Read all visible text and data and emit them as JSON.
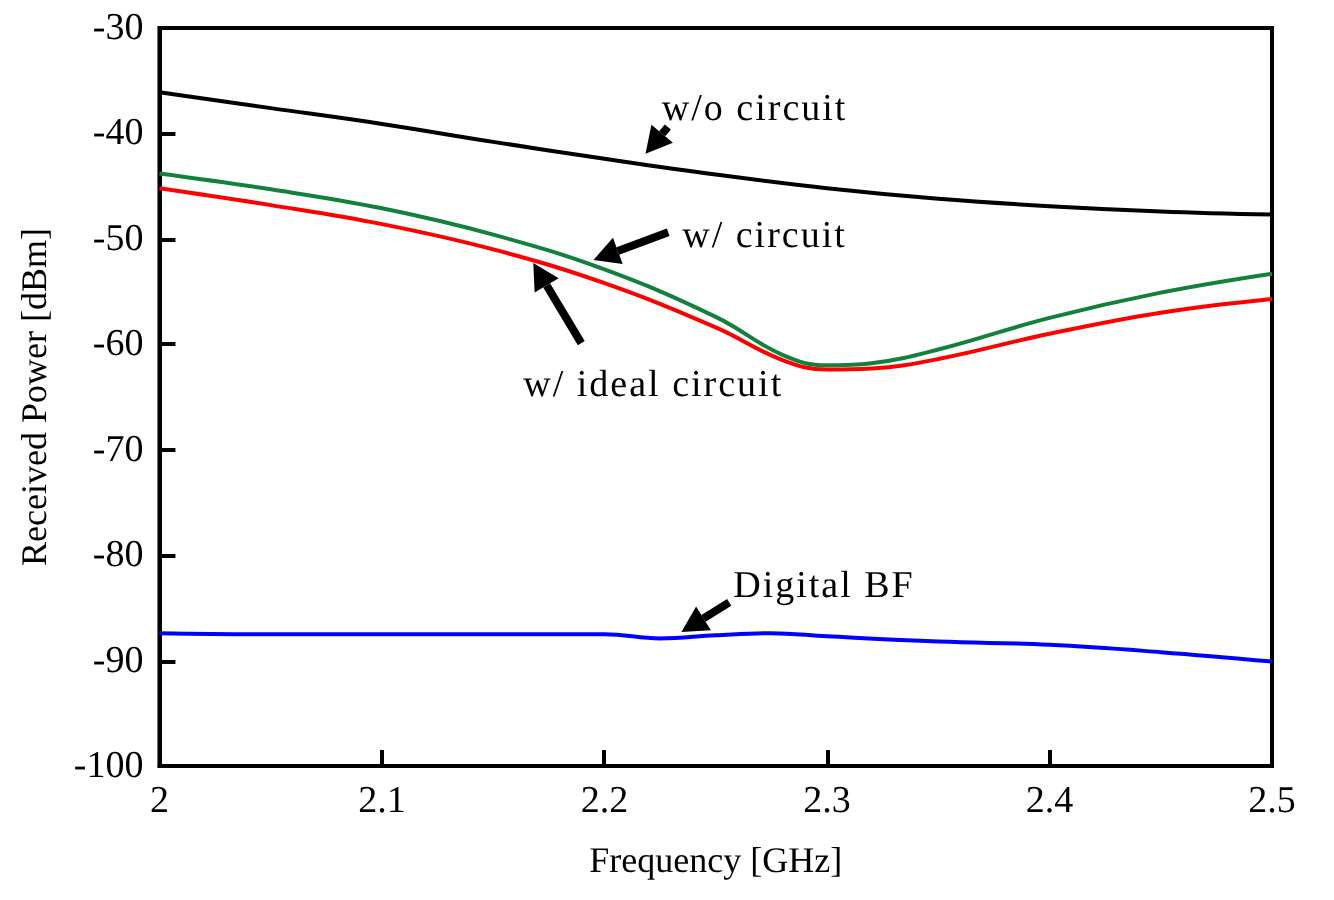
{
  "chart_data": {
    "type": "line",
    "xlabel": "Frequency [GHz]",
    "ylabel": "Received Power [dBm]",
    "xlim": [
      2,
      2.5
    ],
    "ylim": [
      -100,
      -30
    ],
    "xticks": [
      2,
      2.1,
      2.2,
      2.3,
      2.4,
      2.5
    ],
    "yticks": [
      -100,
      -90,
      -80,
      -70,
      -60,
      -50,
      -40,
      -30
    ],
    "grid": false,
    "marker": "none",
    "line_style": "solid",
    "series": [
      {
        "color": "#000000",
        "x": [
          2,
          2.05,
          2.1,
          2.15,
          2.2,
          2.25,
          2.3,
          2.35,
          2.4,
          2.45,
          2.5
        ],
        "values": [
          -36.1,
          -37.6,
          -39.1,
          -40.8,
          -42.4,
          -43.9,
          -45.2,
          -46.2,
          -46.9,
          -47.4,
          -47.7
        ]
      },
      {
        "color": "#13803c",
        "x": [
          2,
          2.05,
          2.1,
          2.15,
          2.2,
          2.25,
          2.28,
          2.3,
          2.32,
          2.35,
          2.4,
          2.45,
          2.5
        ],
        "values": [
          -43.8,
          -45.3,
          -47.1,
          -49.6,
          -52.9,
          -57.4,
          -61,
          -62,
          -61.8,
          -60.5,
          -57.5,
          -55.1,
          -53.3
        ]
      },
      {
        "color": "#ff0000",
        "x": [
          2,
          2.05,
          2.1,
          2.15,
          2.2,
          2.25,
          2.28,
          2.3,
          2.32,
          2.35,
          2.4,
          2.45,
          2.5
        ],
        "values": [
          -45.2,
          -46.8,
          -48.6,
          -51,
          -54.2,
          -58.4,
          -61.5,
          -62.4,
          -62.3,
          -61.4,
          -59,
          -57,
          -55.7
        ]
      },
      {
        "color": "#0000ff",
        "x": [
          2,
          2.05,
          2.1,
          2.15,
          2.2,
          2.225,
          2.25,
          2.275,
          2.3,
          2.35,
          2.4,
          2.45,
          2.5
        ],
        "values": [
          -87.4,
          -87.5,
          -87.5,
          -87.5,
          -87.5,
          -87.9,
          -87.6,
          -87.4,
          -87.7,
          -88.2,
          -88.5,
          -89.2,
          -90.1
        ]
      }
    ],
    "annotations": [
      {
        "text": "w/o circuit",
        "x": 2.215,
        "y": -42.8
      },
      {
        "text": "w/ circuit",
        "x": 2.19,
        "y": -52.4
      },
      {
        "text": "w/ ideal circuit",
        "x": 2.168,
        "y": -52.3
      },
      {
        "text": "Digital BF",
        "x": 2.23,
        "y": -87.9
      }
    ]
  }
}
